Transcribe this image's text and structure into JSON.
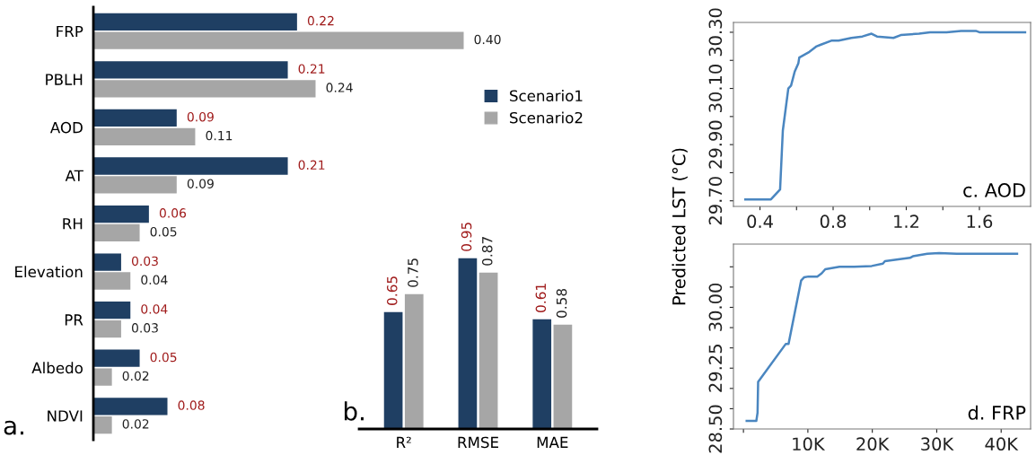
{
  "chart_data": [
    {
      "type": "bar",
      "orientation": "horizontal",
      "categories": [
        "FRP",
        "PBLH",
        "AOD",
        "AT",
        "RH",
        "Elevation",
        "PR",
        "Albedo",
        "NDVI"
      ],
      "series": [
        {
          "name": "Scenario1",
          "color": "#1f3f63",
          "values": [
            0.22,
            0.21,
            0.09,
            0.21,
            0.06,
            0.03,
            0.04,
            0.05,
            0.08
          ],
          "value_labels": [
            "0.22",
            "0.21",
            "0.09",
            "0.21",
            "0.06",
            "0.03",
            "0.04",
            "0.05",
            "0.08"
          ]
        },
        {
          "name": "Scenario2",
          "color": "#a6a6a6",
          "values": [
            0.4,
            0.24,
            0.11,
            0.09,
            0.05,
            0.04,
            0.03,
            0.02,
            0.02
          ],
          "value_labels": [
            "0.40",
            "0.24",
            "0.11",
            "0.09",
            "0.05",
            "0.04",
            "0.03",
            "0.02",
            "0.02"
          ]
        }
      ],
      "tick_labels": "y",
      "legend": "top right",
      "annotations": [
        "a."
      ]
    },
    {
      "type": "bar",
      "categories": [
        "R²",
        "RMSE",
        "MAE"
      ],
      "series": [
        {
          "color": "#1f3f63",
          "values": [
            0.65,
            0.95,
            0.61
          ],
          "value_labels": [
            "0.65",
            "0.95",
            "0.61"
          ]
        },
        {
          "color": "#a6a6a6",
          "values": [
            0.75,
            0.87,
            0.58
          ],
          "value_labels": [
            "0.75",
            "0.87",
            "0.58"
          ]
        }
      ],
      "tick_labels": "x",
      "annotations": [
        "b."
      ]
    },
    {
      "type": "line",
      "ylabel": "Predicted LST (°C)",
      "x": [
        0.32,
        0.46,
        0.51,
        0.525,
        0.555,
        0.57,
        0.59,
        0.61,
        0.615,
        0.67,
        0.71,
        0.73,
        0.79,
        0.83,
        0.9,
        0.96,
        1.01,
        1.04,
        1.13,
        1.17,
        1.27,
        1.33,
        1.42,
        1.5,
        1.58,
        1.6,
        1.85
      ],
      "series": [
        {
          "color": "#4a86c0",
          "values": [
            29.705,
            29.705,
            29.74,
            29.95,
            30.1,
            30.11,
            30.16,
            30.19,
            30.21,
            30.23,
            30.25,
            30.255,
            30.27,
            30.27,
            30.28,
            30.285,
            30.295,
            30.285,
            30.28,
            30.29,
            30.295,
            30.3,
            30.3,
            30.305,
            30.305,
            30.3,
            30.3
          ]
        }
      ],
      "xlim": [
        0.255,
        1.88
      ],
      "ylim": [
        29.68,
        30.335
      ],
      "xticks": [
        0.4,
        {
          "value": 0.6,
          "label": null
        },
        0.8,
        {
          "value": 1.0,
          "label": null
        },
        1.2,
        {
          "value": 1.4,
          "label": null
        },
        1.6
      ],
      "yticks": [
        {
          "value": 29.7,
          "label": "29.70"
        },
        {
          "value": 29.8,
          "label": null
        },
        {
          "value": 29.9,
          "label": "29.90"
        },
        {
          "value": 30.0,
          "label": null
        },
        {
          "value": 30.1,
          "label": "30.10"
        },
        {
          "value": 30.2,
          "label": null
        },
        {
          "value": 30.3,
          "label": "30.30"
        }
      ],
      "annotations": [
        "c. AOD"
      ]
    },
    {
      "type": "line",
      "x": [
        500,
        2000,
        2190,
        2280,
        6580,
        7000,
        8950,
        9400,
        10090,
        11460,
        12150,
        12700,
        14900,
        17170,
        19900,
        21640,
        21960,
        25840,
        26300,
        28540,
        30370,
        33100,
        34930,
        42470
      ],
      "series": [
        {
          "color": "#4a86c0",
          "values": [
            28.6,
            28.6,
            28.7,
            29.08,
            29.55,
            29.55,
            30.33,
            30.37,
            30.38,
            30.38,
            30.42,
            30.47,
            30.5,
            30.5,
            30.51,
            30.54,
            30.57,
            30.61,
            30.63,
            30.66,
            30.67,
            30.66,
            30.66,
            30.66
          ]
        }
      ],
      "xlim": [
        -1550,
        44570
      ],
      "ylim": [
        28.5,
        30.78
      ],
      "xticks": [
        {
          "value": 0,
          "label": null
        },
        {
          "value": 10000,
          "label": "10K"
        },
        {
          "value": 20000,
          "label": "20K"
        },
        {
          "value": 30000,
          "label": "30K"
        },
        {
          "value": 40000,
          "label": "40K"
        }
      ],
      "yticks": [
        {
          "value": 28.5,
          "label": "28.50"
        },
        {
          "value": 28.75,
          "label": null
        },
        {
          "value": 29.0,
          "label": null
        },
        {
          "value": 29.25,
          "label": "29.25"
        },
        {
          "value": 29.5,
          "label": null
        },
        {
          "value": 29.75,
          "label": null
        },
        {
          "value": 30.0,
          "label": "30.00"
        },
        {
          "value": 30.25,
          "label": null
        },
        {
          "value": 30.5,
          "label": null
        }
      ],
      "annotations": [
        "d. FRP"
      ]
    }
  ]
}
